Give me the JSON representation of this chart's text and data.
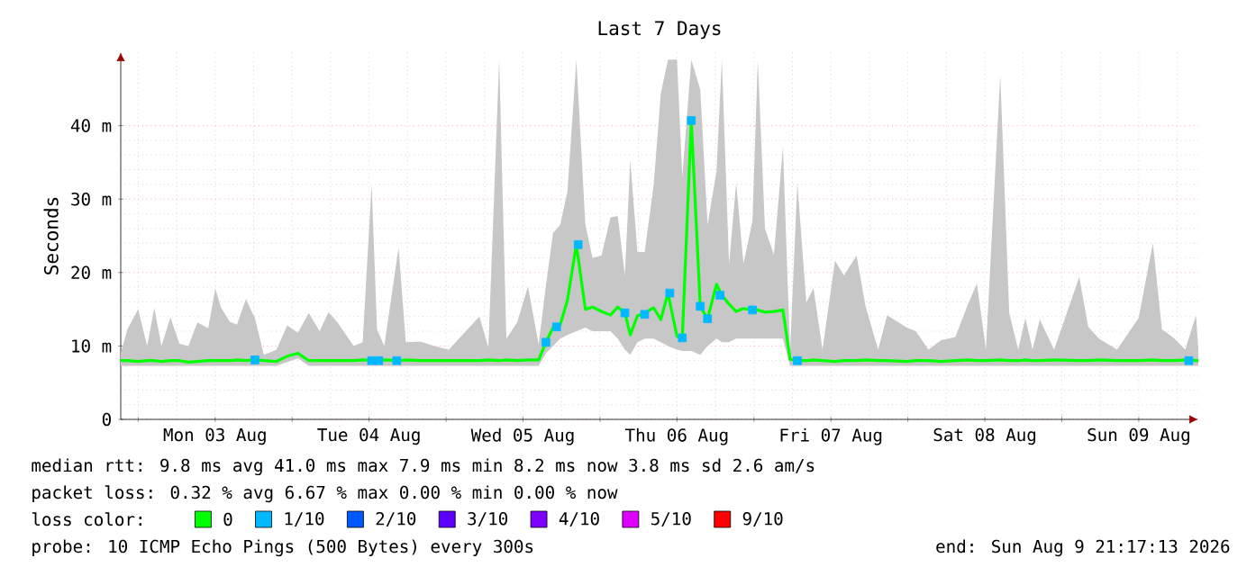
{
  "chart_data": {
    "type": "line",
    "title": "Last 7 Days",
    "ylabel": "Seconds",
    "legend_title": "loss color:",
    "xlim": [
      "2026-08-02T21:17",
      "2026-08-09T21:17"
    ],
    "xticks": [
      {
        "value": "2026-08-03T00:00",
        "label": null
      },
      {
        "value": "2026-08-03T12:00",
        "label": "Mon 03 Aug"
      },
      {
        "value": "2026-08-04T00:00",
        "label": null
      },
      {
        "value": "2026-08-04T12:00",
        "label": "Tue 04 Aug"
      },
      {
        "value": "2026-08-05T00:00",
        "label": null
      },
      {
        "value": "2026-08-05T12:00",
        "label": "Wed 05 Aug"
      },
      {
        "value": "2026-08-06T00:00",
        "label": null
      },
      {
        "value": "2026-08-06T12:00",
        "label": "Thu 06 Aug"
      },
      {
        "value": "2026-08-07T00:00",
        "label": null
      },
      {
        "value": "2026-08-07T12:00",
        "label": "Fri 07 Aug"
      },
      {
        "value": "2026-08-08T00:00",
        "label": null
      },
      {
        "value": "2026-08-08T12:00",
        "label": "Sat 08 Aug"
      },
      {
        "value": "2026-08-09T00:00",
        "label": null
      },
      {
        "value": "2026-08-09T12:00",
        "label": "Sun 09 Aug"
      }
    ],
    "ylim": [
      0,
      50
    ],
    "yticks": [
      0,
      {
        "value": 10,
        "label": "10 m"
      },
      {
        "value": 20,
        "label": "20 m"
      },
      {
        "value": 30,
        "label": "30 m"
      },
      {
        "value": 40,
        "label": "40 m"
      }
    ],
    "grid": true,
    "legend": "bottom",
    "series": [
      {
        "name": "0",
        "color": "#00ff00",
        "marker": "none",
        "x": [
          "2026-08-02T21:17",
          "2026-08-02T22:20",
          "2026-08-03T00:00",
          "2026-08-03T01:24",
          "2026-08-03T02:31",
          "2026-08-03T03:38",
          "2026-08-03T05:02",
          "2026-08-03T06:26",
          "2026-08-03T07:50",
          "2026-08-03T09:14",
          "2026-08-03T10:55",
          "2026-08-03T12:02",
          "2026-08-03T12:53",
          "2026-08-03T14:17",
          "2026-08-03T15:24",
          "2026-08-03T16:48",
          "2026-08-03T18:12",
          "2026-08-03T19:36",
          "2026-08-03T21:34",
          "2026-08-03T23:14",
          "2026-08-04T00:55",
          "2026-08-04T02:36",
          "2026-08-04T04:17",
          "2026-08-04T05:41",
          "2026-08-04T07:05",
          "2026-08-04T09:36",
          "2026-08-04T11:00",
          "2026-08-04T12:24",
          "2026-08-04T13:14",
          "2026-08-04T14:22",
          "2026-08-04T16:36",
          "2026-08-04T17:43",
          "2026-08-04T19:58",
          "2026-08-04T22:12",
          "2026-08-05T00:26",
          "2026-08-05T05:12",
          "2026-08-05T06:36",
          "2026-08-05T08:17",
          "2026-08-05T09:24",
          "2026-08-05T11:05",
          "2026-08-05T12:46",
          "2026-08-05T14:26",
          "2026-08-05T15:34",
          "2026-08-05T16:41",
          "2026-08-05T17:48",
          "2026-08-05T18:55",
          "2026-08-05T20:19",
          "2026-08-05T21:43",
          "2026-08-05T22:50",
          "2026-08-06T00:14",
          "2026-08-06T01:38",
          "2026-08-06T02:46",
          "2026-08-06T03:53",
          "2026-08-06T04:43",
          "2026-08-06T05:50",
          "2026-08-06T06:58",
          "2026-08-06T08:22",
          "2026-08-06T09:29",
          "2026-08-06T10:36",
          "2026-08-06T12:00",
          "2026-08-06T12:50",
          "2026-08-06T14:14",
          "2026-08-06T15:38",
          "2026-08-06T16:46",
          "2026-08-06T18:10",
          "2026-08-06T19:00",
          "2026-08-06T20:07",
          "2026-08-06T21:14",
          "2026-08-06T22:22",
          "2026-08-06T23:46",
          "2026-08-07T00:36",
          "2026-08-07T01:43",
          "2026-08-07T03:07",
          "2026-08-07T04:31",
          "2026-08-07T05:38",
          "2026-08-07T06:46",
          "2026-08-07T08:10",
          "2026-08-07T09:17",
          "2026-08-07T10:41",
          "2026-08-07T12:38",
          "2026-08-07T14:02",
          "2026-08-07T16:00",
          "2026-08-07T17:24",
          "2026-08-07T19:22",
          "2026-08-07T20:46",
          "2026-08-07T23:50",
          "2026-08-08T01:14",
          "2026-08-08T03:12",
          "2026-08-08T05:10",
          "2026-08-08T07:24",
          "2026-08-08T09:22",
          "2026-08-08T10:46",
          "2026-08-08T12:10",
          "2026-08-08T14:24",
          "2026-08-08T15:48",
          "2026-08-08T17:12",
          "2026-08-08T18:19",
          "2026-08-08T19:26",
          "2026-08-08T20:34",
          "2026-08-08T22:48",
          "2026-08-09T02:43",
          "2026-08-09T04:07",
          "2026-08-09T05:48",
          "2026-08-09T08:36",
          "2026-08-09T11:58",
          "2026-08-09T14:12",
          "2026-08-09T15:36",
          "2026-08-09T17:34",
          "2026-08-09T19:14",
          "2026-08-09T20:55",
          "2026-08-09T21:17"
        ],
        "values": [
          8.0,
          8.0,
          7.9,
          8.0,
          8.0,
          7.9,
          8.0,
          8.0,
          7.8,
          7.9,
          8.0,
          8.0,
          8.0,
          8.0,
          8.1,
          8.0,
          8.1,
          8.0,
          7.9,
          8.6,
          9.0,
          8.0,
          8.0,
          8.0,
          8.0,
          8.0,
          8.1,
          8.0,
          8.0,
          8.1,
          8.0,
          8.1,
          8.0,
          8.0,
          8.0,
          8.0,
          8.1,
          8.0,
          8.1,
          8.0,
          8.1,
          8.1,
          10.5,
          12.5,
          12.9,
          16.2,
          23.8,
          15.0,
          15.3,
          14.7,
          14.2,
          15.3,
          14.5,
          11.5,
          14.1,
          14.5,
          15.2,
          13.6,
          17.2,
          11.3,
          11.1,
          40.7,
          15.4,
          13.7,
          18.4,
          16.9,
          15.7,
          14.7,
          15.1,
          14.9,
          14.9,
          14.6,
          14.7,
          14.9,
          8.2,
          8.0,
          8.0,
          8.1,
          8.0,
          7.9,
          8.0,
          8.0,
          8.1,
          8.0,
          8.0,
          7.9,
          8.0,
          8.0,
          7.9,
          8.0,
          8.1,
          8.0,
          8.0,
          8.1,
          8.0,
          8.0,
          8.1,
          8.0,
          8.0,
          8.1,
          8.0,
          8.0,
          8.1,
          8.0,
          8.0,
          8.1,
          8.0,
          8.0,
          8.1,
          8.0,
          8.0
        ],
        "lower": [
          7.3,
          7.3,
          7.3,
          7.3,
          7.3,
          7.3,
          7.3,
          7.3,
          7.3,
          7.3,
          7.3,
          7.3,
          7.3,
          7.3,
          7.3,
          7.3,
          7.3,
          7.3,
          7.3,
          7.8,
          8.3,
          7.3,
          7.3,
          7.3,
          7.3,
          7.3,
          7.3,
          7.3,
          7.3,
          7.3,
          7.3,
          7.3,
          7.3,
          7.3,
          7.3,
          7.3,
          7.3,
          7.3,
          7.3,
          7.3,
          7.3,
          7.3,
          9,
          10,
          11,
          11.5,
          12,
          12.5,
          12,
          12,
          12,
          11,
          9.5,
          8.8,
          10.5,
          11,
          11,
          10.5,
          10,
          9.5,
          9.3,
          9.3,
          8.8,
          10,
          11,
          10.5,
          10.5,
          11,
          11,
          11,
          11,
          11,
          11,
          11,
          7.3,
          7.3,
          7.3,
          7.3,
          7.3,
          7.3,
          7.3,
          7.3,
          7.3,
          7.3,
          7.3,
          7.3,
          7.3,
          7.3,
          7.3,
          7.3,
          7.3,
          7.3,
          7.3,
          7.3,
          7.3,
          7.3,
          7.3,
          7.3,
          7.3,
          7.3,
          7.3,
          7.3,
          7.3,
          7.3,
          7.3,
          7.3,
          7.3,
          7.3,
          7.3,
          7.3,
          7.3
        ],
        "upper": [
          9,
          12.3,
          15,
          10,
          15.2,
          10,
          13.9,
          10.3,
          10,
          13.2,
          12.4,
          17.8,
          15.3,
          13.3,
          12.9,
          16.4,
          13.8,
          8.8,
          9.5,
          12.8,
          11.8,
          14.5,
          12,
          14.6,
          13.2,
          10,
          10.5,
          32,
          12.3,
          10,
          23.4,
          10.5,
          10.6,
          10,
          9.5,
          14,
          9.8,
          49,
          11,
          13.2,
          18.1,
          10.2,
          18.2,
          25.4,
          26.5,
          31,
          49,
          26.5,
          22,
          22.3,
          27.5,
          27.7,
          19.6,
          35.3,
          22.8,
          22.8,
          31.9,
          44.4,
          49,
          49,
          33,
          49,
          44.9,
          26.5,
          33.8,
          49,
          21.2,
          32.2,
          21.2,
          27,
          49,
          26,
          22.4,
          37.1,
          9.3,
          32.2,
          15.9,
          17.9,
          9.5,
          21.6,
          19.6,
          22.3,
          15.4,
          9.5,
          14.2,
          12.5,
          12,
          9.5,
          10.8,
          11.2,
          15.7,
          18.5,
          9.5,
          46.9,
          14.5,
          9.5,
          13.8,
          9.5,
          13.6,
          9.5,
          19.4,
          12.6,
          11,
          9.5,
          13.8,
          24,
          12.3,
          11,
          9.5,
          14.2,
          9.5
        ]
      },
      {
        "name": "1/10",
        "color": "#00b8ff",
        "type": "scatter",
        "marker": "square",
        "x": [
          "2026-08-03T18:12",
          "2026-08-04T12:24",
          "2026-08-04T13:30",
          "2026-08-04T16:19",
          "2026-08-05T15:34",
          "2026-08-05T17:14",
          "2026-08-05T20:36",
          "2026-08-06T03:53",
          "2026-08-06T06:58",
          "2026-08-06T10:53",
          "2026-08-06T12:50",
          "2026-08-06T14:14",
          "2026-08-06T15:38",
          "2026-08-06T16:46",
          "2026-08-06T18:43",
          "2026-08-06T23:46",
          "2026-08-07T06:46",
          "2026-08-09T19:48"
        ],
        "values": [
          8.1,
          8.0,
          8.0,
          8.0,
          10.5,
          12.6,
          23.8,
          14.5,
          14.3,
          17.2,
          11.1,
          40.7,
          15.4,
          13.7,
          16.9,
          14.9,
          8.0,
          8.0
        ]
      },
      {
        "name": "2/10",
        "color": "#0059ff"
      },
      {
        "name": "3/10",
        "color": "#5e00ff"
      },
      {
        "name": "4/10",
        "color": "#7e00ff"
      },
      {
        "name": "5/10",
        "color": "#dd00ff"
      },
      {
        "name": "9/10",
        "color": "#ff0000"
      }
    ],
    "annotations": [
      "median rtt: 9.8 ms avg 41.0 ms max 7.9 ms min 8.2 ms now 3.8 ms sd 2.6 am/s",
      "packet loss: 0.32 % avg 6.67 % max 0.00 % min 0.00 % now",
      "probe: 10 ICMP Echo Pings (500 Bytes) every 300s",
      "end: Sun Aug 9 21:17:13 2026"
    ]
  }
}
